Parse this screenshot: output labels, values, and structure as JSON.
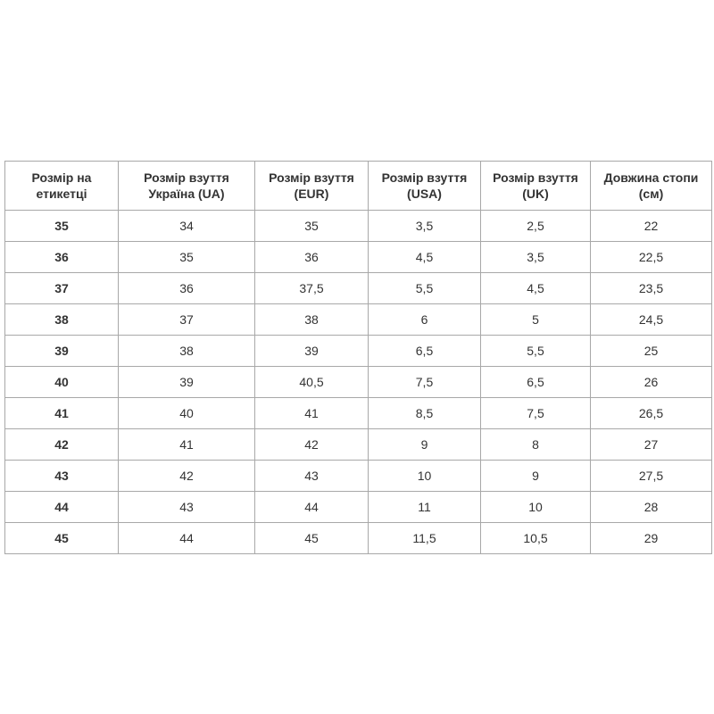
{
  "table": {
    "headers": [
      "Розмір на етикетці",
      "Розмір взуття Україна (UA)",
      "Розмір взуття (EUR)",
      "Розмір взуття (USA)",
      "Розмір взуття (UK)",
      "Довжина стопи (см)"
    ],
    "rows": [
      [
        "35",
        "34",
        "35",
        "3,5",
        "2,5",
        "22"
      ],
      [
        "36",
        "35",
        "36",
        "4,5",
        "3,5",
        "22,5"
      ],
      [
        "37",
        "36",
        "37,5",
        "5,5",
        "4,5",
        "23,5"
      ],
      [
        "38",
        "37",
        "38",
        "6",
        "5",
        "24,5"
      ],
      [
        "39",
        "38",
        "39",
        "6,5",
        "5,5",
        "25"
      ],
      [
        "40",
        "39",
        "40,5",
        "7,5",
        "6,5",
        "26"
      ],
      [
        "41",
        "40",
        "41",
        "8,5",
        "7,5",
        "26,5"
      ],
      [
        "42",
        "41",
        "42",
        "9",
        "8",
        "27"
      ],
      [
        "43",
        "42",
        "43",
        "10",
        "9",
        "27,5"
      ],
      [
        "44",
        "43",
        "44",
        "11",
        "10",
        "28"
      ],
      [
        "45",
        "44",
        "45",
        "11,5",
        "10,5",
        "29"
      ]
    ]
  }
}
